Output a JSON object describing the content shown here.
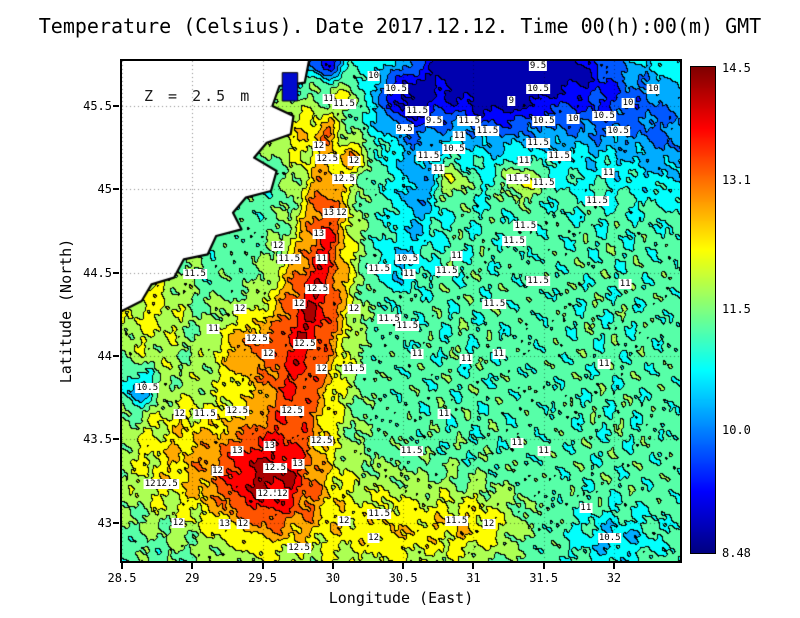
{
  "title": "Temperature (Celsius). Date 2017.12.12. Time 00(h):00(m) GMT",
  "chart_data": {
    "type": "heatmap",
    "title": "Temperature (Celsius). Date 2017.12.12. Time 00(h):00(m) GMT",
    "xlabel": "Longitude (East)",
    "ylabel": "Latitude (North)",
    "annotation": "Z = 2.5 m",
    "xlim": [
      28.5,
      32.47
    ],
    "ylim": [
      42.77,
      45.77
    ],
    "grid": true,
    "contour_interval": 0.5,
    "x_ticks": [
      {
        "value": 28.5,
        "label": "28.5"
      },
      {
        "value": 29,
        "label": "29"
      },
      {
        "value": 29.5,
        "label": "29.5"
      },
      {
        "value": 30,
        "label": "30"
      },
      {
        "value": 30.5,
        "label": "30.5"
      },
      {
        "value": 31,
        "label": "31"
      },
      {
        "value": 31.5,
        "label": "31.5"
      },
      {
        "value": 32,
        "label": "32"
      }
    ],
    "y_ticks": [
      {
        "value": 43,
        "label": "43"
      },
      {
        "value": 43.5,
        "label": "43.5"
      },
      {
        "value": 44,
        "label": "44"
      },
      {
        "value": 44.5,
        "label": "44.5"
      },
      {
        "value": 45,
        "label": "45"
      },
      {
        "value": 45.5,
        "label": "45.5"
      }
    ],
    "colorbar": {
      "min": 8.48,
      "max": 14.5,
      "ticks": [
        {
          "value": 14.5,
          "label": "14.5"
        },
        {
          "value": 13.1,
          "label": "13.1"
        },
        {
          "value": 11.5,
          "label": "11.5"
        },
        {
          "value": 10.0,
          "label": "10.0"
        },
        {
          "value": 8.48,
          "label": "8.48"
        }
      ]
    },
    "colormap": [
      [
        0.0,
        "#000083"
      ],
      [
        0.125,
        "#0000ff"
      ],
      [
        0.375,
        "#00ffff"
      ],
      [
        0.625,
        "#ffff00"
      ],
      [
        0.875,
        "#ff0000"
      ],
      [
        1.0,
        "#800000"
      ]
    ],
    "field": {
      "base": 11.2,
      "blobs": [
        [
          29.55,
          43.25,
          0.38,
          0.35,
          2.2
        ],
        [
          29.75,
          43.9,
          0.3,
          0.45,
          2.0
        ],
        [
          29.85,
          44.35,
          0.25,
          0.35,
          1.6
        ],
        [
          29.95,
          44.85,
          0.18,
          0.45,
          2.0
        ],
        [
          29.0,
          43.4,
          0.55,
          0.4,
          1.2
        ],
        [
          28.7,
          44.3,
          0.3,
          0.4,
          0.9
        ],
        [
          29.7,
          45.35,
          0.22,
          0.18,
          1.0
        ],
        [
          30.15,
          45.2,
          0.1,
          0.1,
          1.3
        ],
        [
          29.95,
          45.35,
          0.08,
          0.08,
          1.1
        ],
        [
          31.35,
          45.05,
          0.15,
          0.12,
          1.2
        ],
        [
          30.85,
          45.05,
          0.1,
          0.12,
          1.1
        ],
        [
          30.1,
          45.55,
          0.12,
          0.1,
          0.9
        ],
        [
          30.5,
          42.95,
          0.5,
          0.25,
          0.8
        ],
        [
          31.05,
          43.0,
          0.3,
          0.2,
          0.8
        ],
        [
          29.35,
          44.05,
          0.22,
          0.22,
          1.3
        ],
        [
          30.0,
          43.0,
          0.8,
          0.4,
          0.5
        ],
        [
          31.15,
          45.65,
          0.35,
          0.25,
          -2.6
        ],
        [
          30.55,
          45.55,
          0.25,
          0.2,
          -2.0
        ],
        [
          31.9,
          45.55,
          0.4,
          0.25,
          -1.0
        ],
        [
          32.4,
          45.3,
          0.3,
          0.3,
          -0.8
        ],
        [
          31.5,
          45.5,
          1.0,
          0.45,
          -0.8
        ],
        [
          30.6,
          45.0,
          0.15,
          0.35,
          -0.9
        ],
        [
          30.45,
          44.55,
          0.15,
          0.15,
          -0.7
        ],
        [
          28.62,
          43.8,
          0.13,
          0.12,
          -1.4
        ],
        [
          32.0,
          42.9,
          0.28,
          0.15,
          -0.7
        ],
        [
          31.6,
          45.76,
          0.3,
          0.15,
          -1.6
        ],
        [
          30.9,
          45.76,
          0.25,
          0.12,
          -1.4
        ],
        [
          29.95,
          45.76,
          0.12,
          0.08,
          -2.2
        ]
      ],
      "noise": [
        [
          0.3,
          21,
          13,
          0.0,
          -7,
          23,
          1.3
        ],
        [
          0.18,
          47,
          31,
          2.1,
          13,
          41,
          0.4
        ],
        [
          0.12,
          83,
          59,
          4.2,
          -37,
          71,
          2.0
        ]
      ]
    },
    "coastline": [
      [
        29.83,
        45.77
      ],
      [
        29.8,
        45.64
      ],
      [
        29.62,
        45.62
      ],
      [
        29.57,
        45.5
      ],
      [
        29.72,
        45.44
      ],
      [
        29.7,
        45.33
      ],
      [
        29.53,
        45.28
      ],
      [
        29.44,
        45.19
      ],
      [
        29.6,
        45.11
      ],
      [
        29.56,
        44.99
      ],
      [
        29.38,
        44.95
      ],
      [
        29.29,
        44.86
      ],
      [
        29.35,
        44.76
      ],
      [
        29.17,
        44.72
      ],
      [
        29.11,
        44.61
      ],
      [
        28.94,
        44.58
      ],
      [
        28.87,
        44.47
      ],
      [
        28.71,
        44.43
      ],
      [
        28.64,
        44.33
      ],
      [
        28.5,
        44.27
      ]
    ],
    "lagoon": {
      "lon0": 29.64,
      "lon1": 29.75,
      "lat0": 45.53,
      "lat1": 45.7,
      "color": "#0009cf"
    },
    "point_labels": [
      [
        31.46,
        45.74,
        "9.5"
      ],
      [
        30.29,
        45.68,
        "10"
      ],
      [
        31.46,
        45.6,
        "10.5"
      ],
      [
        31.27,
        45.53,
        "9"
      ],
      [
        32.1,
        45.52,
        "10"
      ],
      [
        29.97,
        45.54,
        "11"
      ],
      [
        30.08,
        45.51,
        "11.5"
      ],
      [
        31.93,
        45.44,
        "10.5"
      ],
      [
        30.51,
        45.36,
        "9.5"
      ],
      [
        30.72,
        45.41,
        "9.5"
      ],
      [
        30.97,
        45.41,
        "11.5"
      ],
      [
        31.5,
        45.41,
        "10.5"
      ],
      [
        31.71,
        45.42,
        "10"
      ],
      [
        32.03,
        45.35,
        "10.5"
      ],
      [
        32.28,
        45.6,
        "10"
      ],
      [
        29.9,
        45.26,
        "12"
      ],
      [
        29.96,
        45.18,
        "12.5"
      ],
      [
        30.9,
        45.32,
        "11"
      ],
      [
        31.46,
        45.28,
        "11.5"
      ],
      [
        30.86,
        45.24,
        "10.5"
      ],
      [
        31.36,
        45.17,
        "11"
      ],
      [
        31.61,
        45.2,
        "11.5"
      ],
      [
        30.15,
        45.17,
        "12"
      ],
      [
        30.08,
        45.06,
        "12.5"
      ],
      [
        30.68,
        45.2,
        "11.5"
      ],
      [
        30.75,
        45.12,
        "11"
      ],
      [
        31.32,
        45.06,
        "11.5"
      ],
      [
        31.5,
        45.04,
        "11.5"
      ],
      [
        31.96,
        45.1,
        "11"
      ],
      [
        31.88,
        44.93,
        "11.5"
      ],
      [
        29.97,
        44.86,
        "13"
      ],
      [
        30.06,
        44.86,
        "12"
      ],
      [
        29.9,
        44.73,
        "13"
      ],
      [
        31.37,
        44.78,
        "11.5"
      ],
      [
        31.29,
        44.69,
        "11.5"
      ],
      [
        29.61,
        44.66,
        "12"
      ],
      [
        29.69,
        44.58,
        "11.5"
      ],
      [
        29.92,
        44.58,
        "11"
      ],
      [
        30.33,
        44.52,
        "11.5"
      ],
      [
        30.53,
        44.58,
        "10.5"
      ],
      [
        30.54,
        44.49,
        "11"
      ],
      [
        30.88,
        44.6,
        "11"
      ],
      [
        30.81,
        44.51,
        "11.5"
      ],
      [
        31.46,
        44.45,
        "11.5"
      ],
      [
        32.08,
        44.43,
        "11"
      ],
      [
        29.02,
        44.49,
        "11.5"
      ],
      [
        29.34,
        44.28,
        "12"
      ],
      [
        29.89,
        44.4,
        "12.5"
      ],
      [
        29.76,
        44.31,
        "12"
      ],
      [
        30.15,
        44.28,
        "12"
      ],
      [
        30.4,
        44.22,
        "11.5"
      ],
      [
        31.15,
        44.31,
        "11.5"
      ],
      [
        29.15,
        44.16,
        "11"
      ],
      [
        29.46,
        44.1,
        "12.5"
      ],
      [
        29.54,
        44.01,
        "12"
      ],
      [
        29.8,
        44.07,
        "12.5"
      ],
      [
        29.92,
        43.92,
        "12"
      ],
      [
        30.15,
        43.92,
        "11.5"
      ],
      [
        30.53,
        44.18,
        "11.5"
      ],
      [
        30.6,
        44.01,
        "11"
      ],
      [
        30.95,
        43.98,
        "11"
      ],
      [
        31.18,
        44.01,
        "11"
      ],
      [
        31.93,
        43.95,
        "11"
      ],
      [
        28.68,
        43.81,
        "10.5"
      ],
      [
        28.91,
        43.65,
        "12"
      ],
      [
        29.09,
        43.65,
        "11.5"
      ],
      [
        29.32,
        43.67,
        "12.5"
      ],
      [
        29.71,
        43.67,
        "12.5"
      ],
      [
        30.79,
        43.65,
        "11"
      ],
      [
        29.32,
        43.43,
        "13"
      ],
      [
        29.55,
        43.46,
        "13"
      ],
      [
        29.92,
        43.49,
        "12.5"
      ],
      [
        30.56,
        43.43,
        "11.5"
      ],
      [
        31.31,
        43.48,
        "11"
      ],
      [
        29.18,
        43.31,
        "12"
      ],
      [
        29.59,
        43.33,
        "12.5"
      ],
      [
        29.75,
        43.35,
        "13"
      ],
      [
        28.7,
        43.23,
        "12"
      ],
      [
        28.82,
        43.23,
        "12.5"
      ],
      [
        29.54,
        43.17,
        "12.5"
      ],
      [
        29.64,
        43.17,
        "12"
      ],
      [
        30.33,
        43.05,
        "11.5"
      ],
      [
        31.5,
        43.43,
        "11"
      ],
      [
        28.9,
        43.0,
        "12"
      ],
      [
        29.23,
        42.99,
        "13"
      ],
      [
        29.36,
        42.99,
        "12"
      ],
      [
        30.08,
        43.01,
        "12"
      ],
      [
        29.76,
        42.85,
        "12.5"
      ],
      [
        30.29,
        42.91,
        "12"
      ],
      [
        30.88,
        43.01,
        "11.5"
      ],
      [
        31.11,
        42.99,
        "12"
      ],
      [
        31.97,
        42.91,
        "10.5"
      ],
      [
        31.8,
        43.09,
        "11"
      ],
      [
        30.45,
        45.6,
        "10.5"
      ],
      [
        31.1,
        45.35,
        "11.5"
      ],
      [
        30.6,
        45.47,
        "11.5"
      ]
    ]
  }
}
